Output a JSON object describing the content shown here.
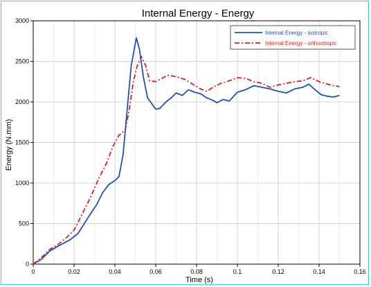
{
  "chart_data": {
    "type": "line",
    "title": "Internal Energy - Energy",
    "xlabel": "Time (s)",
    "ylabel": "Energy (N.mm)",
    "xlim": [
      0,
      0.16
    ],
    "ylim": [
      0,
      3000
    ],
    "xticks": [
      0,
      0.02,
      0.04,
      0.06,
      0.08,
      0.1,
      0.12,
      0.14,
      0.16
    ],
    "yticks": [
      0,
      500,
      1000,
      1500,
      2000,
      2500,
      3000
    ],
    "xtick_labels": [
      "0",
      "0.02",
      "0.04",
      "0.06",
      "0.08",
      "0.1",
      "0.12",
      "0.14",
      "0.16"
    ],
    "ytick_labels": [
      "0",
      "500",
      "1000",
      "1500",
      "2000",
      "2500",
      "3000"
    ],
    "grid": true,
    "legend_position": "top-right",
    "series": [
      {
        "name": "Internal Energy - isotropic",
        "color": "#1f4fbf",
        "style": "solid",
        "points": [
          [
            0,
            0
          ],
          [
            0.004,
            60
          ],
          [
            0.008,
            160
          ],
          [
            0.012,
            220
          ],
          [
            0.015,
            260
          ],
          [
            0.018,
            300
          ],
          [
            0.022,
            380
          ],
          [
            0.025,
            500
          ],
          [
            0.028,
            620
          ],
          [
            0.031,
            730
          ],
          [
            0.034,
            880
          ],
          [
            0.037,
            980
          ],
          [
            0.04,
            1030
          ],
          [
            0.042,
            1080
          ],
          [
            0.044,
            1350
          ],
          [
            0.046,
            1900
          ],
          [
            0.048,
            2450
          ],
          [
            0.0505,
            2790
          ],
          [
            0.052,
            2650
          ],
          [
            0.054,
            2300
          ],
          [
            0.056,
            2050
          ],
          [
            0.058,
            1980
          ],
          [
            0.06,
            1910
          ],
          [
            0.062,
            1920
          ],
          [
            0.065,
            2000
          ],
          [
            0.068,
            2060
          ],
          [
            0.07,
            2110
          ],
          [
            0.073,
            2080
          ],
          [
            0.076,
            2150
          ],
          [
            0.079,
            2120
          ],
          [
            0.082,
            2100
          ],
          [
            0.085,
            2050
          ],
          [
            0.088,
            2020
          ],
          [
            0.09,
            1990
          ],
          [
            0.093,
            2030
          ],
          [
            0.096,
            2010
          ],
          [
            0.1,
            2120
          ],
          [
            0.104,
            2150
          ],
          [
            0.108,
            2200
          ],
          [
            0.112,
            2180
          ],
          [
            0.116,
            2160
          ],
          [
            0.12,
            2130
          ],
          [
            0.124,
            2110
          ],
          [
            0.128,
            2160
          ],
          [
            0.132,
            2180
          ],
          [
            0.135,
            2220
          ],
          [
            0.138,
            2150
          ],
          [
            0.141,
            2090
          ],
          [
            0.144,
            2070
          ],
          [
            0.147,
            2060
          ],
          [
            0.15,
            2080
          ]
        ]
      },
      {
        "name": "Internal Energy - orthootropic",
        "color": "#e01b1b",
        "style": "dashdot",
        "points": [
          [
            0,
            0
          ],
          [
            0.004,
            80
          ],
          [
            0.008,
            180
          ],
          [
            0.012,
            240
          ],
          [
            0.016,
            320
          ],
          [
            0.02,
            420
          ],
          [
            0.024,
            620
          ],
          [
            0.028,
            820
          ],
          [
            0.032,
            1050
          ],
          [
            0.036,
            1250
          ],
          [
            0.039,
            1450
          ],
          [
            0.042,
            1590
          ],
          [
            0.045,
            1650
          ],
          [
            0.047,
            1900
          ],
          [
            0.049,
            2250
          ],
          [
            0.051,
            2450
          ],
          [
            0.053,
            2560
          ],
          [
            0.055,
            2450
          ],
          [
            0.057,
            2260
          ],
          [
            0.06,
            2250
          ],
          [
            0.063,
            2290
          ],
          [
            0.066,
            2330
          ],
          [
            0.07,
            2310
          ],
          [
            0.074,
            2280
          ],
          [
            0.078,
            2220
          ],
          [
            0.082,
            2160
          ],
          [
            0.085,
            2130
          ],
          [
            0.088,
            2180
          ],
          [
            0.092,
            2230
          ],
          [
            0.096,
            2260
          ],
          [
            0.1,
            2300
          ],
          [
            0.104,
            2290
          ],
          [
            0.108,
            2250
          ],
          [
            0.112,
            2230
          ],
          [
            0.116,
            2180
          ],
          [
            0.12,
            2210
          ],
          [
            0.124,
            2230
          ],
          [
            0.128,
            2250
          ],
          [
            0.132,
            2260
          ],
          [
            0.136,
            2300
          ],
          [
            0.14,
            2250
          ],
          [
            0.144,
            2220
          ],
          [
            0.147,
            2200
          ],
          [
            0.15,
            2190
          ]
        ]
      }
    ]
  }
}
